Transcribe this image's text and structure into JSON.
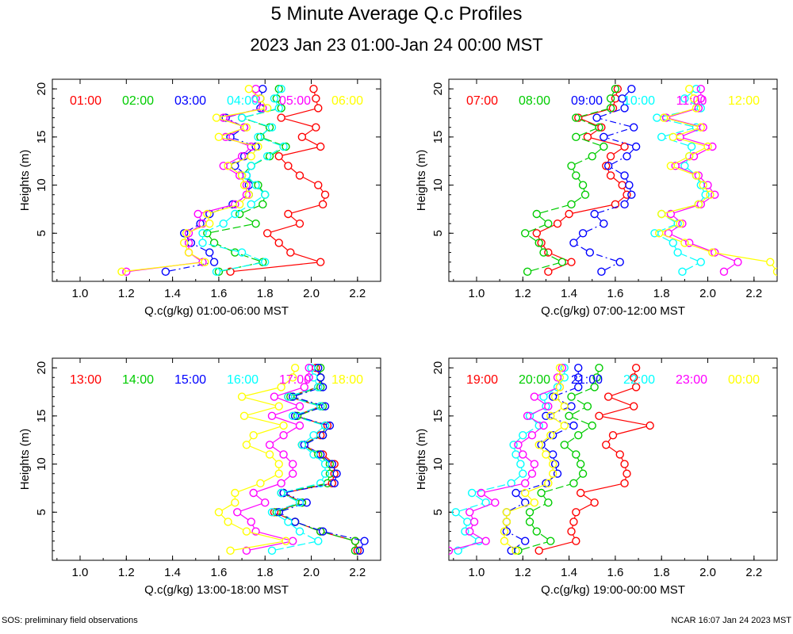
{
  "figure": {
    "title": "5 Minute Average Q.c Profiles",
    "subtitle": "2023 Jan 23 01:00-Jan 24 00:00 MST",
    "footer_left": "SOS: preliminary field observations",
    "footer_right": "NCAR 16:07 Jan 24 2023 MST"
  },
  "series_colors": [
    "#ff0000",
    "#00cc00",
    "#0000ff",
    "#00ffff",
    "#ff00ff",
    "#ffff00"
  ],
  "chart_data": [
    {
      "type": "line",
      "title": "",
      "xlabel": "Q.c(g/kg) 01:00-06:00 MST",
      "ylabel": "Heights (m)",
      "xlim": [
        0.88,
        2.3
      ],
      "ylim": [
        0,
        21
      ],
      "xticks": [
        "1.0",
        "1.2",
        "1.4",
        "1.6",
        "1.8",
        "2.0",
        "2.2"
      ],
      "yticks": [
        "5",
        "10",
        "15",
        "20"
      ],
      "heights": [
        1,
        2,
        3,
        4,
        5,
        6,
        7,
        8,
        9,
        10,
        11,
        12,
        13,
        14,
        15,
        16,
        17,
        18,
        19,
        20
      ],
      "series": [
        {
          "name": "01:00",
          "values": [
            1.65,
            2.04,
            1.91,
            1.86,
            1.81,
            1.95,
            1.9,
            2.05,
            2.06,
            2.03,
            1.95,
            1.9,
            1.86,
            2.04,
            1.96,
            2.02,
            1.87,
            2.03,
            2.02,
            2.01
          ]
        },
        {
          "name": "02:00",
          "values": [
            1.6,
            1.79,
            1.67,
            1.58,
            1.55,
            1.76,
            1.69,
            1.79,
            1.8,
            1.77,
            1.7,
            1.74,
            1.82,
            1.89,
            1.78,
            1.82,
            1.7,
            1.87,
            1.85,
            1.86
          ]
        },
        {
          "name": "03:00",
          "values": [
            1.37,
            1.58,
            1.56,
            1.48,
            1.45,
            1.52,
            1.56,
            1.66,
            1.73,
            1.73,
            1.72,
            1.67,
            1.71,
            1.76,
            1.65,
            1.71,
            1.63,
            1.78,
            1.78,
            1.79
          ]
        },
        {
          "name": "04:00",
          "values": [
            1.59,
            1.8,
            1.7,
            1.53,
            1.53,
            1.62,
            1.67,
            1.74,
            1.8,
            1.76,
            1.72,
            1.74,
            1.81,
            1.88,
            1.77,
            1.83,
            1.7,
            1.86,
            1.84,
            1.87
          ]
        },
        {
          "name": "05:00",
          "values": [
            1.2,
            1.53,
            1.47,
            1.47,
            1.47,
            1.53,
            1.51,
            1.67,
            1.72,
            1.72,
            1.69,
            1.62,
            1.7,
            1.74,
            1.63,
            1.71,
            1.62,
            1.79,
            1.76,
            1.76
          ]
        },
        {
          "name": "06:00",
          "values": [
            1.18,
            1.54,
            1.47,
            1.45,
            1.46,
            1.56,
            1.55,
            1.69,
            1.73,
            1.71,
            1.7,
            1.64,
            1.74,
            1.77,
            1.6,
            1.72,
            1.59,
            1.81,
            1.78,
            1.73
          ]
        }
      ]
    },
    {
      "type": "line",
      "title": "",
      "xlabel": "Q.c(g/kg) 07:00-12:00 MST",
      "ylabel": "Heights (m)",
      "xlim": [
        0.88,
        2.3
      ],
      "ylim": [
        0,
        21
      ],
      "xticks": [
        "1.0",
        "1.2",
        "1.4",
        "1.6",
        "1.8",
        "2.0",
        "2.2"
      ],
      "yticks": [
        "5",
        "10",
        "15",
        "20"
      ],
      "heights": [
        1,
        2,
        3,
        4,
        5,
        6,
        7,
        8,
        9,
        10,
        11,
        12,
        13,
        14,
        15,
        16,
        17,
        18,
        19,
        20
      ],
      "series": [
        {
          "name": "07:00",
          "values": [
            1.31,
            1.41,
            1.31,
            1.28,
            1.26,
            1.35,
            1.4,
            1.6,
            1.65,
            1.63,
            1.58,
            1.56,
            1.58,
            1.64,
            1.48,
            1.54,
            1.44,
            1.59,
            1.6,
            1.61
          ]
        },
        {
          "name": "08:00",
          "values": [
            1.22,
            1.37,
            1.29,
            1.27,
            1.21,
            1.31,
            1.26,
            1.41,
            1.47,
            1.46,
            1.43,
            1.41,
            1.5,
            1.55,
            1.43,
            1.53,
            1.43,
            1.58,
            1.58,
            1.6
          ]
        },
        {
          "name": "09:00",
          "values": [
            1.54,
            1.62,
            1.49,
            1.42,
            1.46,
            1.55,
            1.51,
            1.64,
            1.67,
            1.66,
            1.64,
            1.57,
            1.65,
            1.69,
            1.55,
            1.68,
            1.52,
            1.64,
            1.63,
            1.67
          ]
        },
        {
          "name": "10:00",
          "values": [
            1.89,
            1.97,
            1.87,
            1.85,
            1.77,
            1.87,
            1.8,
            1.96,
            1.99,
            1.97,
            1.95,
            1.9,
            1.92,
            1.93,
            1.8,
            1.95,
            1.78,
            1.97,
            1.9,
            1.95
          ]
        },
        {
          "name": "11:00",
          "values": [
            2.07,
            2.13,
            2.03,
            1.92,
            1.83,
            1.89,
            1.84,
            1.97,
            2.03,
            2.0,
            1.96,
            1.86,
            1.94,
            2.02,
            1.88,
            1.98,
            1.82,
            1.96,
            1.97,
            1.97
          ]
        },
        {
          "name": "12:00",
          "values": [
            2.3,
            2.27,
            2.02,
            1.9,
            1.79,
            1.88,
            1.8,
            1.96,
            2.01,
            1.98,
            1.95,
            1.84,
            1.92,
            2.0,
            1.85,
            1.97,
            1.81,
            1.95,
            1.94,
            1.92
          ]
        }
      ]
    },
    {
      "type": "line",
      "title": "",
      "xlabel": "Q.c(g/kg) 13:00-18:00 MST",
      "ylabel": "Heights (m)",
      "xlim": [
        0.88,
        2.3
      ],
      "ylim": [
        0,
        21
      ],
      "xticks": [
        "1.0",
        "1.2",
        "1.4",
        "1.6",
        "1.8",
        "2.0",
        "2.2"
      ],
      "yticks": [
        "5",
        "10",
        "15",
        "20"
      ],
      "heights": [
        1,
        2,
        3,
        4,
        5,
        6,
        7,
        8,
        9,
        10,
        11,
        12,
        13,
        14,
        15,
        16,
        17,
        18,
        19,
        20
      ],
      "series": [
        {
          "name": "13:00",
          "values": [
            2.2,
            2.19,
            2.04,
            1.93,
            1.84,
            1.96,
            1.88,
            2.09,
            2.1,
            2.1,
            2.05,
            1.96,
            2.04,
            2.07,
            1.93,
            2.04,
            1.9,
            2.03,
            2.04,
            2.02
          ]
        },
        {
          "name": "14:00",
          "values": [
            2.19,
            2.19,
            2.04,
            1.93,
            1.85,
            1.96,
            1.87,
            2.07,
            2.08,
            2.08,
            2.03,
            1.96,
            2.05,
            2.06,
            1.94,
            2.05,
            1.91,
            2.04,
            2.04,
            2.04
          ]
        },
        {
          "name": "15:00",
          "values": [
            2.21,
            2.23,
            2.05,
            1.93,
            1.86,
            1.98,
            1.88,
            2.1,
            2.11,
            2.09,
            2.04,
            1.97,
            2.05,
            2.08,
            1.93,
            2.06,
            1.92,
            2.05,
            2.04,
            2.03
          ]
        },
        {
          "name": "16:00",
          "values": [
            1.83,
            2.03,
            1.95,
            1.9,
            1.83,
            1.95,
            1.87,
            2.04,
            2.06,
            2.06,
            2.01,
            1.96,
            2.01,
            2.06,
            1.92,
            2.04,
            1.9,
            2.03,
            2.01,
            2.0
          ]
        },
        {
          "name": "17:00",
          "values": [
            1.72,
            1.92,
            1.76,
            1.74,
            1.68,
            1.8,
            1.75,
            1.87,
            1.92,
            1.92,
            1.88,
            1.82,
            1.88,
            1.95,
            1.83,
            1.95,
            1.84,
            1.97,
            1.99,
            1.99
          ]
        },
        {
          "name": "18:00",
          "values": [
            1.65,
            1.89,
            1.72,
            1.64,
            1.6,
            1.67,
            1.67,
            1.78,
            1.86,
            1.86,
            1.82,
            1.72,
            1.75,
            1.88,
            1.71,
            1.86,
            1.7,
            1.87,
            1.92,
            1.93
          ]
        }
      ]
    },
    {
      "type": "line",
      "title": "",
      "xlabel": "Q.c(g/kg) 19:00-00:00 MST",
      "ylabel": "Heights (m)",
      "xlim": [
        0.88,
        2.3
      ],
      "ylim": [
        0,
        21
      ],
      "xticks": [
        "1.0",
        "1.2",
        "1.4",
        "1.6",
        "1.8",
        "2.0",
        "2.2"
      ],
      "yticks": [
        "5",
        "10",
        "15",
        "20"
      ],
      "heights": [
        1,
        2,
        3,
        4,
        5,
        6,
        7,
        8,
        9,
        10,
        11,
        12,
        13,
        14,
        15,
        16,
        17,
        18,
        19,
        20
      ],
      "series": [
        {
          "name": "19:00",
          "values": [
            1.27,
            1.43,
            1.41,
            1.42,
            1.43,
            1.51,
            1.45,
            1.64,
            1.65,
            1.64,
            1.62,
            1.56,
            1.59,
            1.75,
            1.53,
            1.68,
            1.57,
            1.69,
            1.68,
            1.69
          ]
        },
        {
          "name": "20:00",
          "values": [
            1.18,
            1.32,
            1.26,
            1.23,
            1.23,
            1.31,
            1.28,
            1.42,
            1.46,
            1.45,
            1.43,
            1.38,
            1.44,
            1.5,
            1.4,
            1.48,
            1.41,
            1.51,
            1.52,
            1.53
          ]
        },
        {
          "name": "21:00",
          "values": [
            1.15,
            1.21,
            1.13,
            1.13,
            1.13,
            1.21,
            1.17,
            1.3,
            1.35,
            1.34,
            1.33,
            1.28,
            1.33,
            1.42,
            1.3,
            1.41,
            1.33,
            1.44,
            1.44,
            1.44
          ]
        },
        {
          "name": "22:00",
          "values": [
            0.92,
            1.01,
            0.95,
            0.96,
            0.91,
            1.04,
            0.98,
            1.15,
            1.2,
            1.19,
            1.17,
            1.16,
            1.2,
            1.27,
            1.23,
            1.3,
            1.29,
            1.35,
            1.38,
            1.38
          ]
        },
        {
          "name": "23:00",
          "values": [
            0.88,
            1.04,
            0.97,
            0.99,
            0.97,
            1.08,
            1.02,
            1.21,
            1.24,
            1.25,
            1.2,
            1.18,
            1.24,
            1.29,
            1.22,
            1.31,
            1.25,
            1.36,
            1.35,
            1.37
          ]
        },
        {
          "name": "00:00",
          "values": [
            1.17,
            1.12,
            1.12,
            1.13,
            1.13,
            1.25,
            1.21,
            1.31,
            1.33,
            1.33,
            1.3,
            1.27,
            1.32,
            1.38,
            1.32,
            1.38,
            1.34,
            1.36,
            1.36,
            1.36
          ]
        }
      ]
    }
  ]
}
